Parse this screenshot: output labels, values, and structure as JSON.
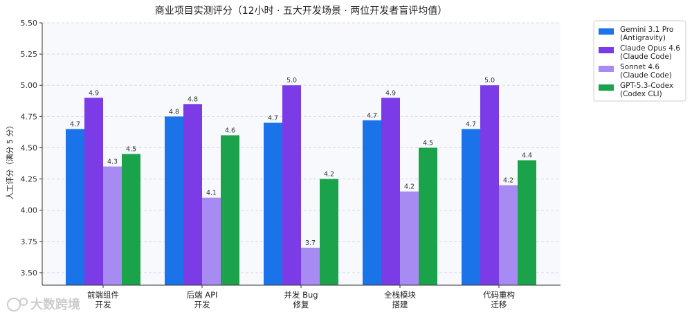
{
  "chart_data": {
    "type": "bar",
    "title": "商业项目实测评分（12小时 · 五大开发场景 · 两位开发者盲评均值）",
    "ylabel": "人工评分（满分 5 分）",
    "xlabel": "",
    "ylim": [
      3.4,
      5.5
    ],
    "yticks": [
      "3.50",
      "3.75",
      "4.00",
      "4.25",
      "4.50",
      "4.75",
      "5.00",
      "5.25",
      "5.50"
    ],
    "grid": "horizontal dashed",
    "legend_position": "top-right, outside plot",
    "categories": [
      [
        "前端组件",
        "开发"
      ],
      [
        "后端 API",
        "开发"
      ],
      [
        "并发 Bug",
        "修复"
      ],
      [
        "全栈模块",
        "搭建"
      ],
      [
        "代码重构",
        "迁移"
      ]
    ],
    "series": [
      {
        "name": [
          "Gemini 3.1 Pro",
          "(Antigravity)"
        ],
        "color": "#1a73e8",
        "values": [
          4.65,
          4.75,
          4.7,
          4.72,
          4.65
        ],
        "labels": [
          "4.7",
          "4.8",
          "4.7",
          "4.7",
          "4.7"
        ]
      },
      {
        "name": [
          "Claude Opus 4.6",
          "(Claude Code)"
        ],
        "color": "#7b3be6",
        "values": [
          4.9,
          4.85,
          5.0,
          4.9,
          5.0
        ],
        "labels": [
          "4.9",
          "4.8",
          "5.0",
          "4.9",
          "5.0"
        ]
      },
      {
        "name": [
          "Sonnet 4.6",
          "(Claude Code)"
        ],
        "color": "#a78bf3",
        "values": [
          4.35,
          4.1,
          3.7,
          4.15,
          4.2
        ],
        "labels": [
          "4.3",
          "4.1",
          "3.7",
          "4.2",
          "4.2"
        ]
      },
      {
        "name": [
          "GPT-5.3-Codex",
          "(Codex CLI)"
        ],
        "color": "#1aa34a",
        "values": [
          4.45,
          4.6,
          4.25,
          4.5,
          4.4
        ],
        "labels": [
          "4.5",
          "4.6",
          "4.2",
          "4.5",
          "4.4"
        ]
      }
    ]
  },
  "watermark": "大数跨境"
}
